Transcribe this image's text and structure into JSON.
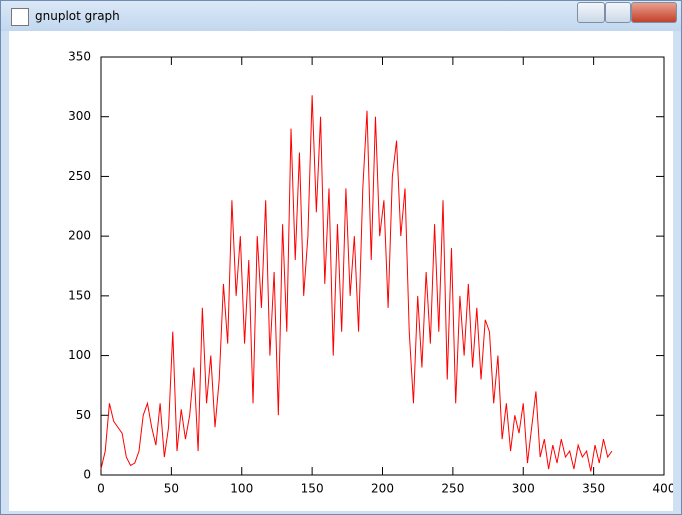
{
  "window": {
    "title": "gnuplot graph"
  },
  "chart_data": {
    "type": "line",
    "color": "#ff0000",
    "xlim": [
      0,
      400
    ],
    "xticks": [
      0,
      50,
      100,
      150,
      200,
      250,
      300,
      350,
      400
    ],
    "ylim": [
      0,
      350
    ],
    "yticks": [
      0,
      50,
      100,
      150,
      200,
      250,
      300,
      350
    ],
    "x": [
      0,
      3,
      6,
      9,
      12,
      15,
      18,
      21,
      24,
      27,
      30,
      33,
      36,
      39,
      42,
      45,
      48,
      51,
      54,
      57,
      60,
      63,
      66,
      69,
      72,
      75,
      78,
      81,
      84,
      87,
      90,
      93,
      96,
      99,
      102,
      105,
      108,
      111,
      114,
      117,
      120,
      123,
      126,
      129,
      132,
      135,
      138,
      141,
      144,
      147,
      150,
      153,
      156,
      159,
      162,
      165,
      168,
      171,
      174,
      177,
      180,
      183,
      186,
      189,
      192,
      195,
      198,
      201,
      204,
      207,
      210,
      213,
      216,
      219,
      222,
      225,
      228,
      231,
      234,
      237,
      240,
      243,
      246,
      249,
      252,
      255,
      258,
      261,
      264,
      267,
      270,
      273,
      276,
      279,
      282,
      285,
      288,
      291,
      294,
      297,
      300,
      303,
      306,
      309,
      312,
      315,
      318,
      321,
      324,
      327,
      330,
      333,
      336,
      339,
      342,
      345,
      348,
      351,
      354,
      357,
      360,
      363
    ],
    "values": [
      5,
      20,
      60,
      45,
      40,
      35,
      15,
      8,
      10,
      20,
      50,
      60,
      40,
      25,
      60,
      15,
      40,
      120,
      20,
      55,
      30,
      50,
      90,
      20,
      140,
      60,
      100,
      40,
      80,
      160,
      110,
      230,
      150,
      200,
      110,
      180,
      60,
      200,
      140,
      230,
      100,
      170,
      50,
      210,
      120,
      290,
      180,
      270,
      150,
      200,
      318,
      220,
      300,
      160,
      240,
      100,
      210,
      120,
      240,
      150,
      200,
      120,
      240,
      305,
      180,
      300,
      200,
      230,
      140,
      250,
      280,
      200,
      240,
      120,
      60,
      150,
      90,
      170,
      110,
      210,
      120,
      230,
      80,
      190,
      60,
      150,
      100,
      160,
      90,
      140,
      80,
      130,
      120,
      60,
      100,
      30,
      60,
      20,
      50,
      35,
      60,
      10,
      40,
      70,
      15,
      30,
      5,
      25,
      10,
      30,
      15,
      20,
      5,
      25,
      15,
      20,
      3,
      25,
      10,
      30,
      15,
      20
    ]
  }
}
